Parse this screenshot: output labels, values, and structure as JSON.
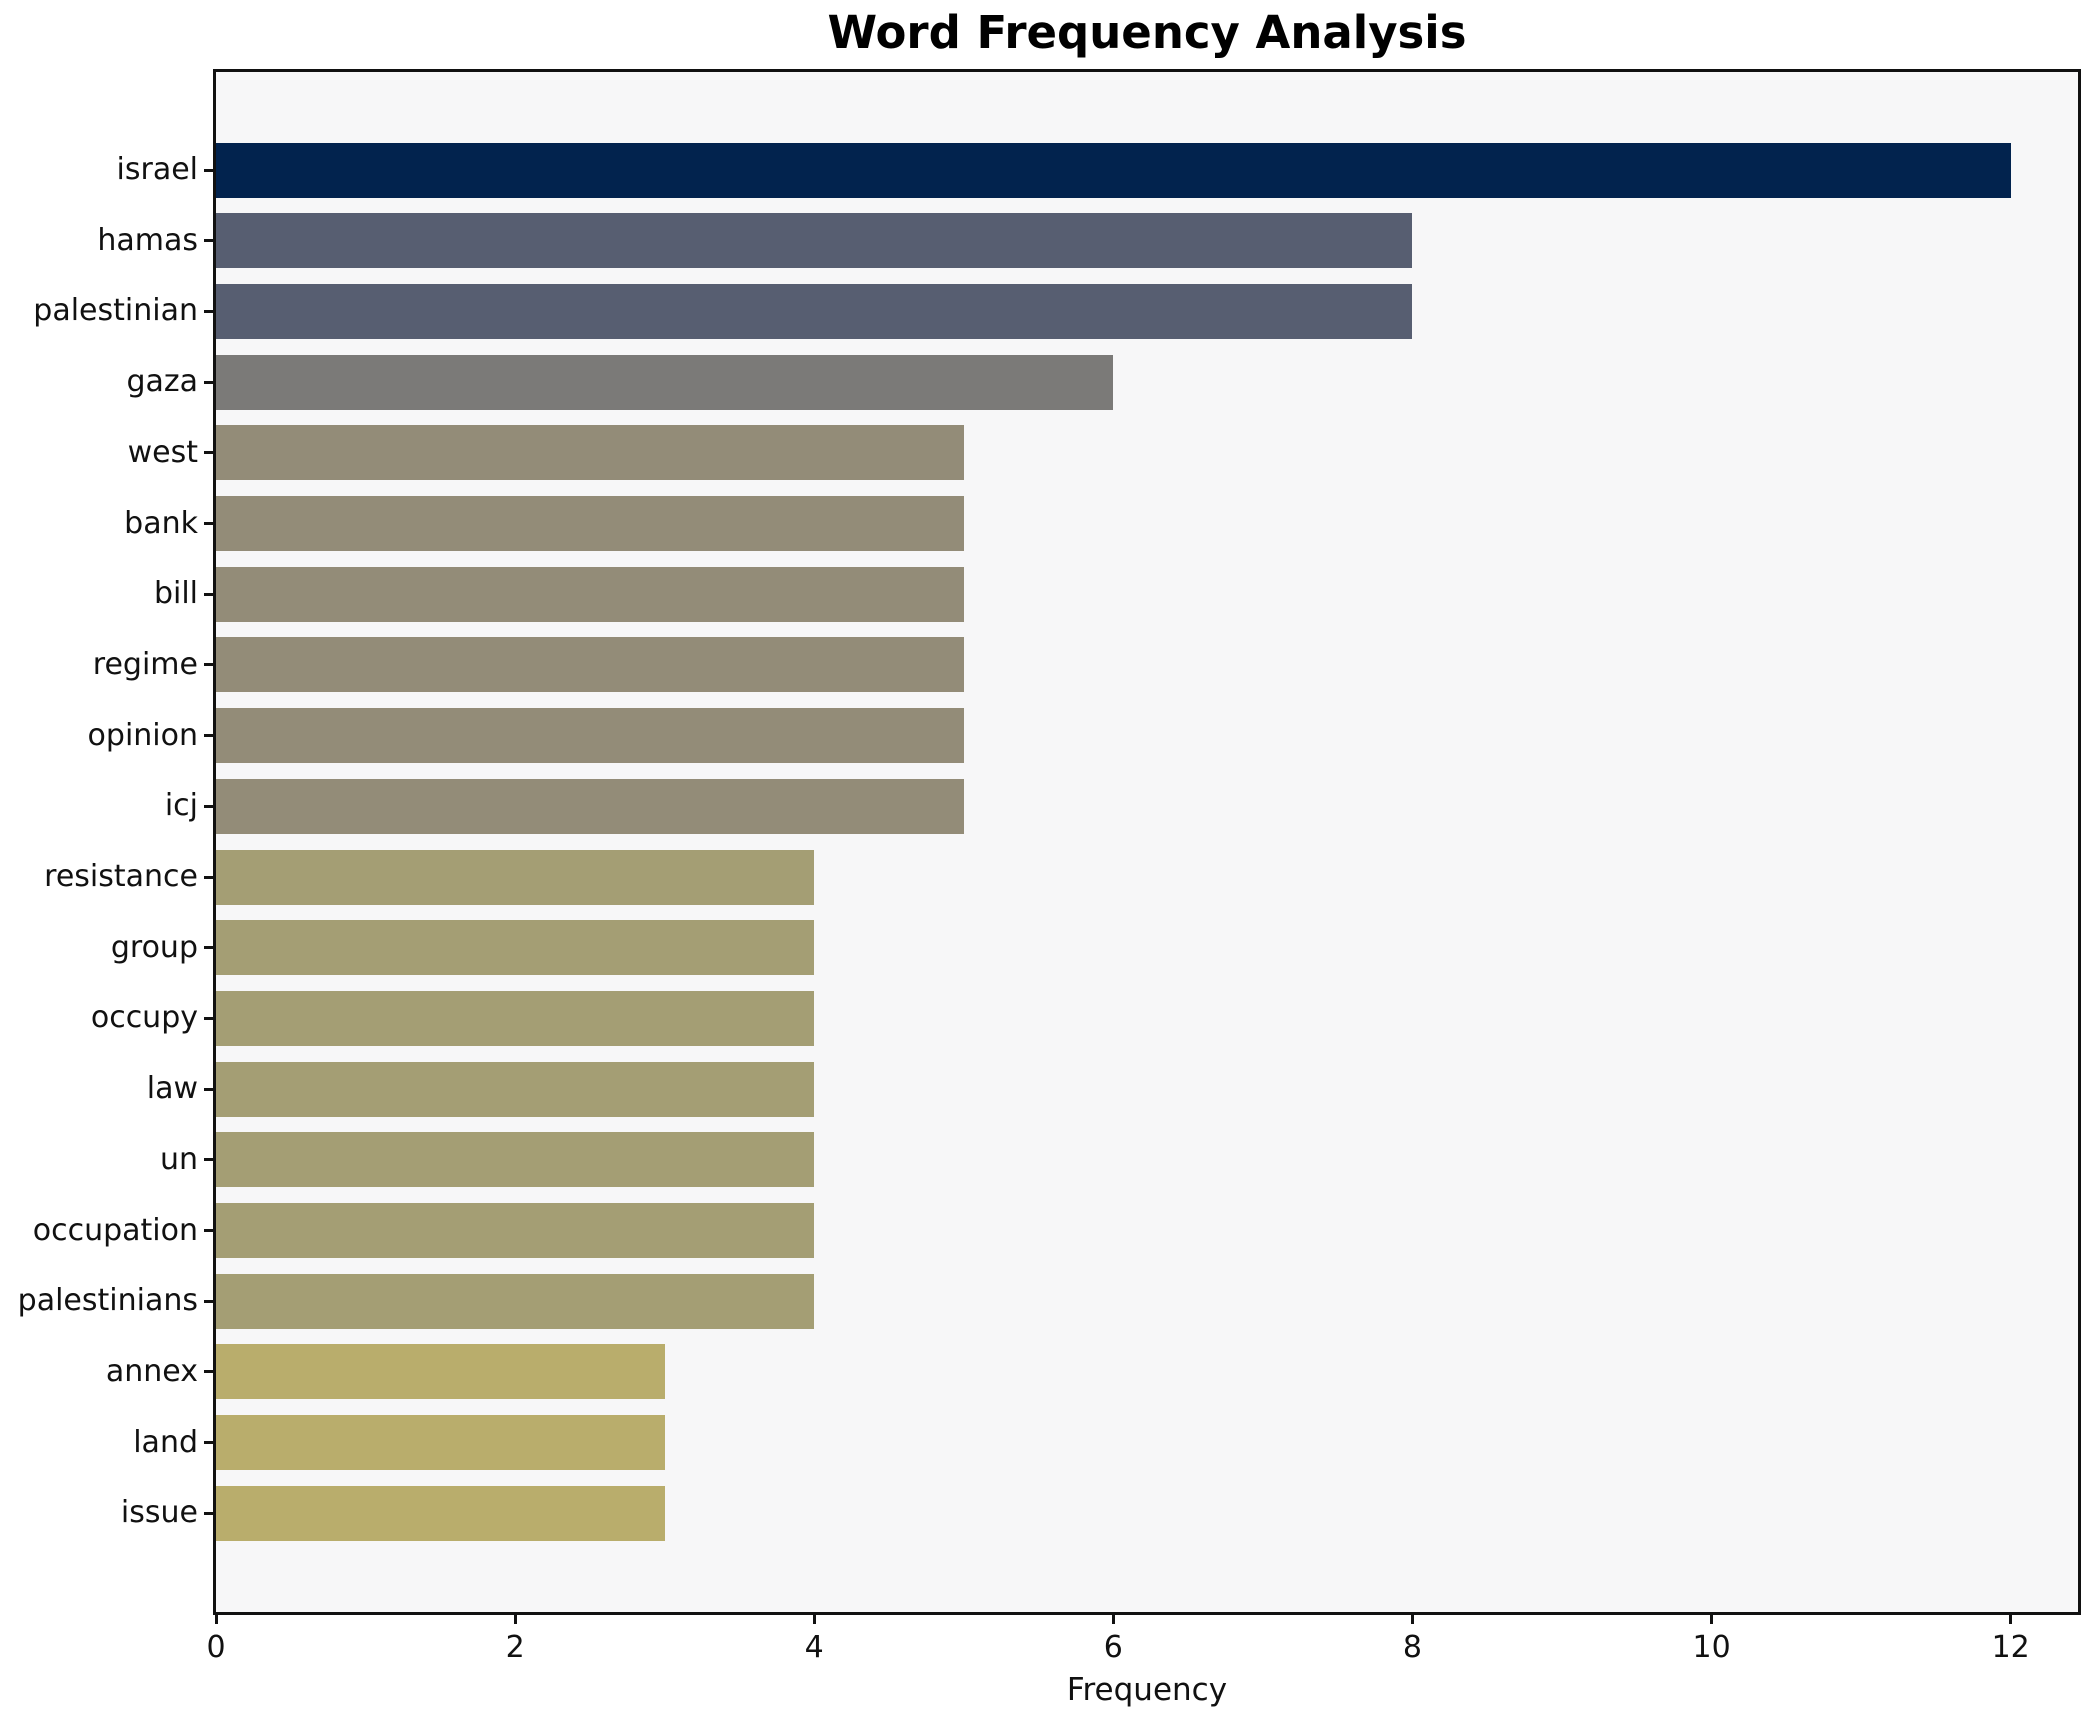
{
  "chart_data": {
    "type": "bar",
    "orientation": "horizontal",
    "title": "Word Frequency Analysis",
    "xlabel": "Frequency",
    "ylabel": "",
    "categories": [
      "israel",
      "hamas",
      "palestinian",
      "gaza",
      "west",
      "bank",
      "bill",
      "regime",
      "opinion",
      "icj",
      "resistance",
      "group",
      "occupy",
      "law",
      "un",
      "occupation",
      "palestinians",
      "annex",
      "land",
      "issue"
    ],
    "values": [
      12,
      8,
      8,
      6,
      5,
      5,
      5,
      5,
      5,
      5,
      4,
      4,
      4,
      4,
      4,
      4,
      4,
      3,
      3,
      3
    ],
    "bar_colors": [
      "#02234e",
      "#575e71",
      "#575e71",
      "#7b7a78",
      "#938c78",
      "#938c78",
      "#938c78",
      "#938c78",
      "#938c78",
      "#938c78",
      "#a49e74",
      "#a49e74",
      "#a49e74",
      "#a49e74",
      "#a49e74",
      "#a49e74",
      "#a49e74",
      "#b9ad6c",
      "#b9ad6c",
      "#b9ad6c"
    ],
    "xticks": [
      0,
      2,
      4,
      6,
      8,
      10,
      12
    ],
    "xlim": [
      0,
      12.45
    ],
    "grid": false,
    "legend_position": "none",
    "plot_background": "#f7f7f8",
    "spine_color": "#111111",
    "text_color": "#111111"
  }
}
